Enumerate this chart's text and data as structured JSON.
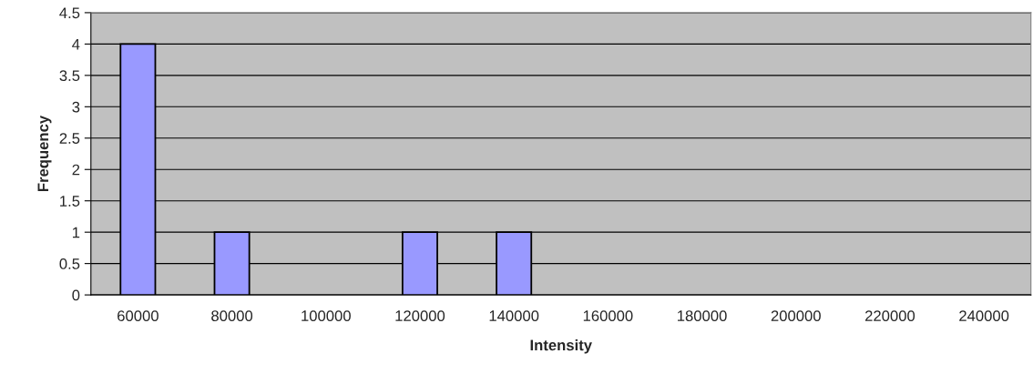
{
  "chart_data": {
    "type": "bar",
    "xlabel": "Intensity",
    "ylabel": "Frequency",
    "categories": [
      "60000",
      "80000",
      "100000",
      "120000",
      "140000",
      "160000",
      "180000",
      "200000",
      "220000",
      "240000"
    ],
    "values": [
      4,
      1,
      0,
      1,
      1,
      0,
      0,
      0,
      0,
      0
    ],
    "color": "#9999ff",
    "ylim": [
      0,
      4.5
    ],
    "yticks": [
      0,
      0.5,
      1,
      1.5,
      2,
      2.5,
      3,
      3.5,
      4,
      4.5
    ],
    "grid": "y",
    "legend": false
  }
}
